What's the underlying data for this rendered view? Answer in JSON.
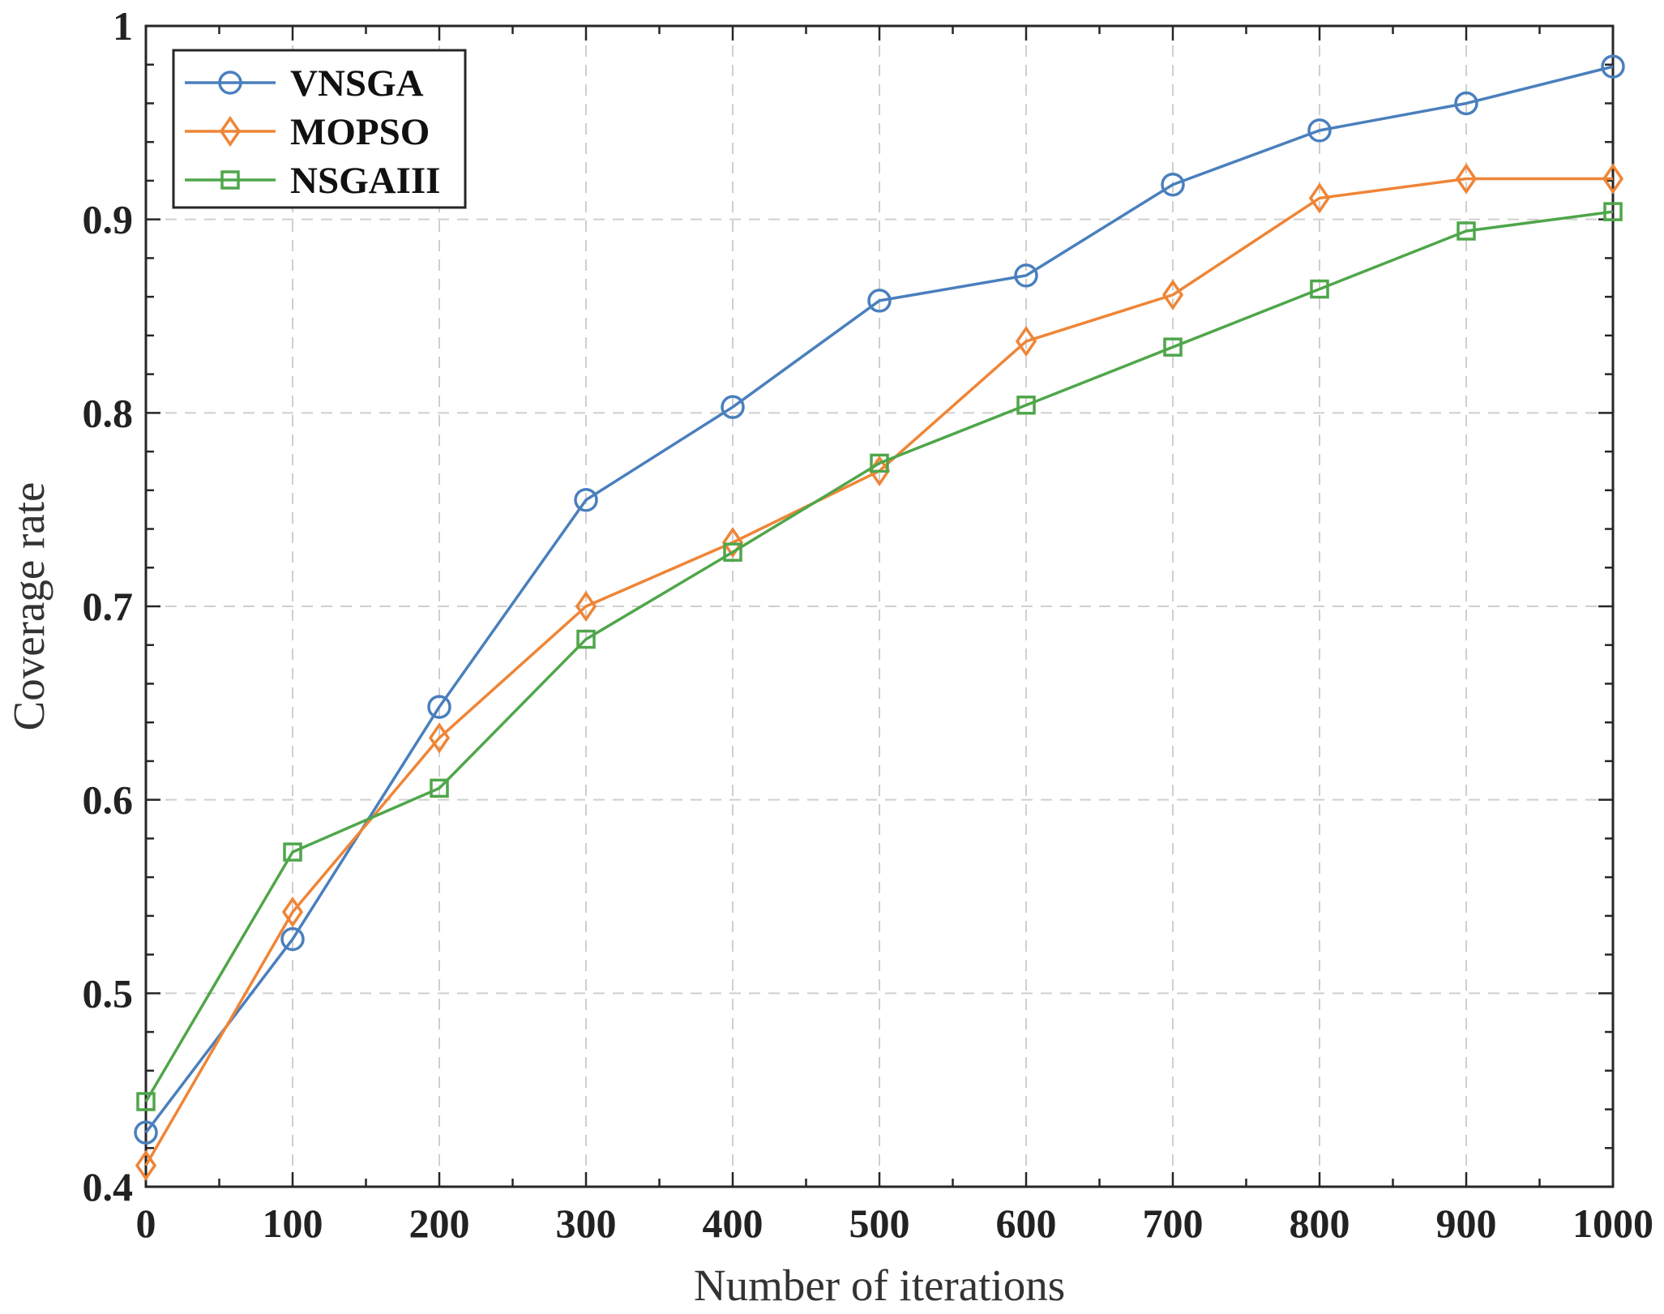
{
  "chart_data": {
    "type": "line",
    "title": "",
    "xlabel": "Number of iterations",
    "ylabel": "Coverage rate",
    "x": [
      0,
      100,
      200,
      300,
      400,
      500,
      600,
      700,
      800,
      900,
      1000
    ],
    "xlim": [
      0,
      1000
    ],
    "ylim": [
      0.4,
      1.0
    ],
    "xticks": [
      0,
      100,
      200,
      300,
      400,
      500,
      600,
      700,
      800,
      900,
      1000
    ],
    "xtick_labels": [
      "0",
      "100",
      "200",
      "300",
      "400",
      "500",
      "600",
      "700",
      "800",
      "900",
      "1000"
    ],
    "yticks": [
      0.4,
      0.5,
      0.6,
      0.7,
      0.8,
      0.9,
      1.0
    ],
    "ytick_labels": [
      "0.4",
      "0.5",
      "0.6",
      "0.7",
      "0.8",
      "0.9",
      "1"
    ],
    "grid": true,
    "legend_position": "top-left",
    "series": [
      {
        "name": "VNSGA",
        "marker": "circle",
        "color": "#4a7fbd",
        "values": [
          0.428,
          0.528,
          0.648,
          0.755,
          0.803,
          0.858,
          0.871,
          0.918,
          0.946,
          0.96,
          0.979
        ]
      },
      {
        "name": "MOPSO",
        "marker": "diamond",
        "color": "#ef8536",
        "values": [
          0.411,
          0.542,
          0.632,
          0.7,
          0.733,
          0.77,
          0.837,
          0.861,
          0.911,
          0.921,
          0.921
        ]
      },
      {
        "name": "NSGAIII",
        "marker": "square",
        "color": "#4fa64a",
        "values": [
          0.444,
          0.573,
          0.606,
          0.683,
          0.728,
          0.774,
          0.804,
          0.834,
          0.864,
          0.894,
          0.904
        ]
      }
    ]
  }
}
